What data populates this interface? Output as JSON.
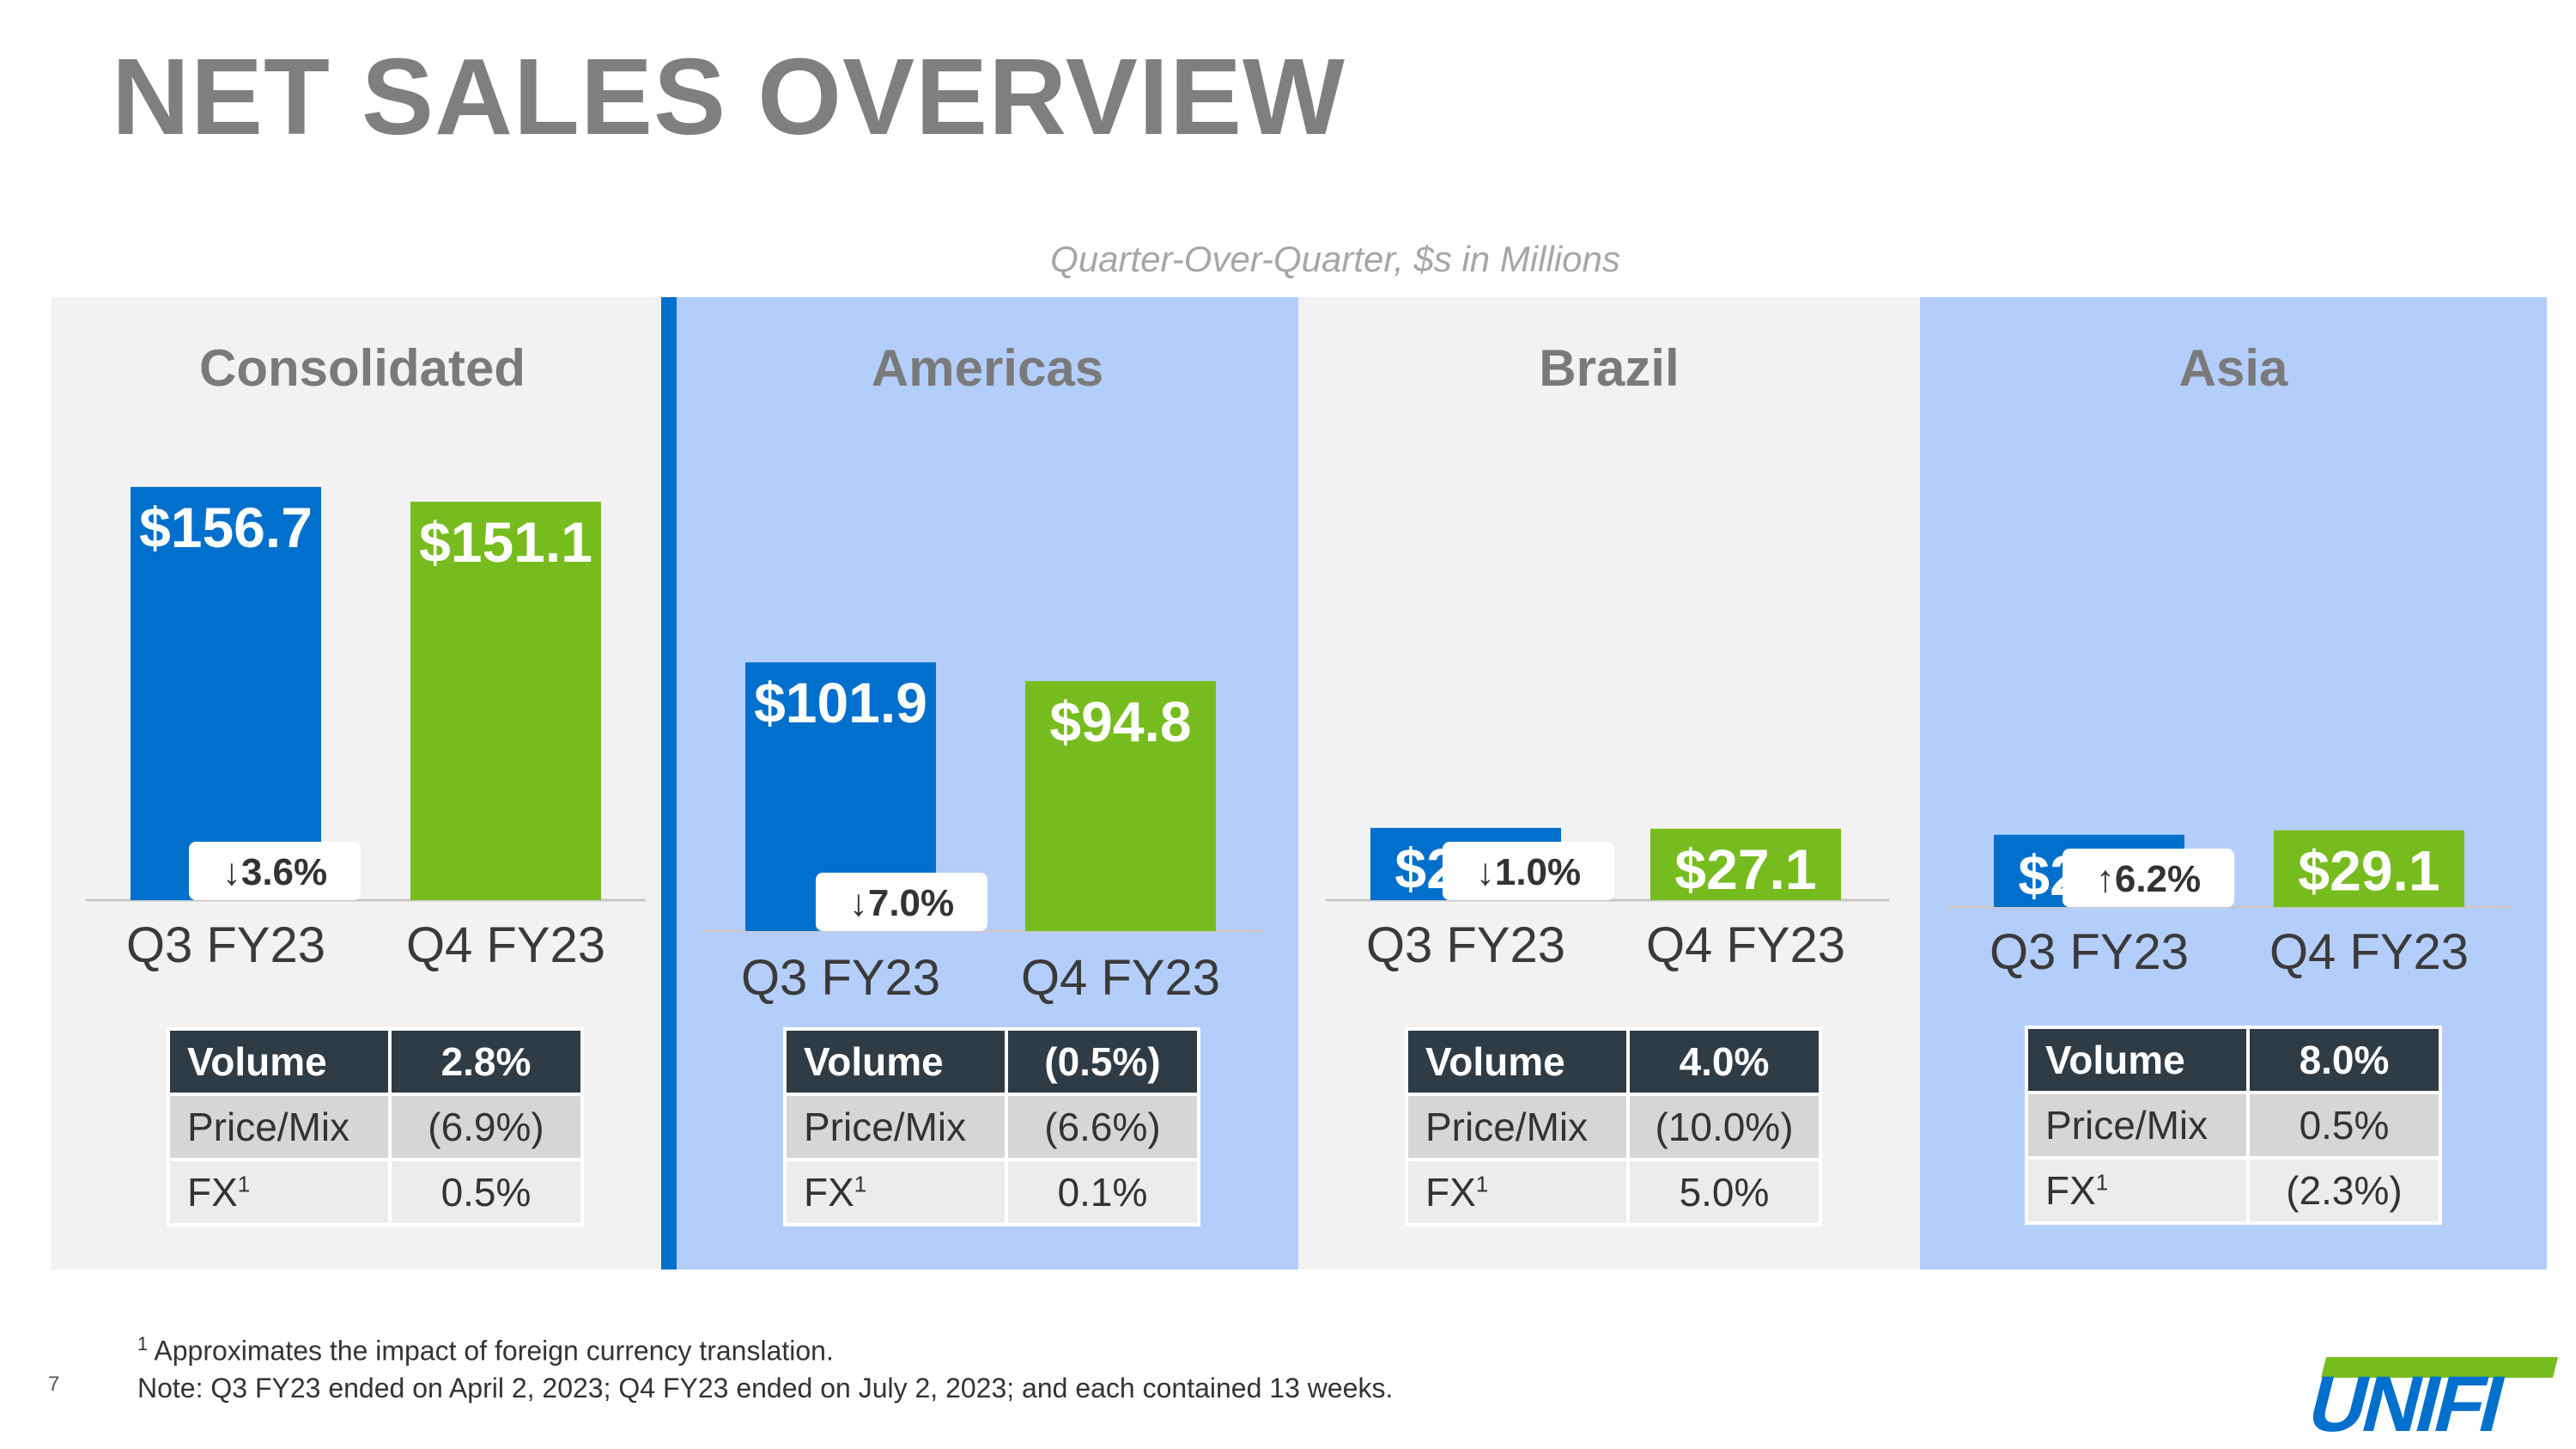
{
  "title": "NET SALES OVERVIEW",
  "subtitle": "Quarter-Over-Quarter, $s in Millions",
  "chart_data": [
    {
      "type": "bar",
      "title": "Consolidated",
      "categories": [
        "Q3 FY23",
        "Q4 FY23"
      ],
      "values": [
        156.7,
        151.1
      ],
      "value_labels": [
        "$156.7",
        "$151.1"
      ],
      "colors": [
        "#0070cc",
        "#77bc1f"
      ],
      "change_label": "↓3.6%",
      "drivers": {
        "header": {
          "label": "Volume",
          "value": "2.8%"
        },
        "price_mix": {
          "label": "Price/Mix",
          "value": "(6.9%)"
        },
        "fx": {
          "label": "FX",
          "sup": "1",
          "value": "0.5%"
        }
      }
    },
    {
      "type": "bar",
      "title": "Americas",
      "categories": [
        "Q3 FY23",
        "Q4 FY23"
      ],
      "values": [
        101.9,
        94.8
      ],
      "value_labels": [
        "$101.9",
        "$94.8"
      ],
      "colors": [
        "#0070cc",
        "#77bc1f"
      ],
      "change_label": "↓7.0%",
      "drivers": {
        "header": {
          "label": "Volume",
          "value": "(0.5%)"
        },
        "price_mix": {
          "label": "Price/Mix",
          "value": "(6.6%)"
        },
        "fx": {
          "label": "FX",
          "sup": "1",
          "value": "0.1%"
        }
      }
    },
    {
      "type": "bar",
      "title": "Brazil",
      "categories": [
        "Q3 FY23",
        "Q4 FY23"
      ],
      "values": [
        27.4,
        27.1
      ],
      "value_labels": [
        "$27.4",
        "$27.1"
      ],
      "colors": [
        "#0070cc",
        "#77bc1f"
      ],
      "change_label": "↓1.0%",
      "drivers": {
        "header": {
          "label": "Volume",
          "value": "4.0%"
        },
        "price_mix": {
          "label": "Price/Mix",
          "value": "(10.0%)"
        },
        "fx": {
          "label": "FX",
          "sup": "1",
          "value": "5.0%"
        }
      }
    },
    {
      "type": "bar",
      "title": "Asia",
      "categories": [
        "Q3 FY23",
        "Q4 FY23"
      ],
      "values": [
        27.4,
        29.1
      ],
      "value_labels": [
        "$27.4",
        "$29.1"
      ],
      "colors": [
        "#0070cc",
        "#77bc1f"
      ],
      "change_label": "↑6.2%",
      "drivers": {
        "header": {
          "label": "Volume",
          "value": "8.0%"
        },
        "price_mix": {
          "label": "Price/Mix",
          "value": "0.5%"
        },
        "fx": {
          "label": "FX",
          "sup": "1",
          "value": "(2.3%)"
        }
      }
    }
  ],
  "footnotes": {
    "note1_sup": "1",
    "note1": "Approximates the impact of foreign currency translation.",
    "note2": "Note: Q3 FY23 ended on April 2, 2023; Q4 FY23 ended on July 2, 2023; and each contained 13 weeks."
  },
  "page_number": "7",
  "logo_text": "UNIFI",
  "colors": {
    "q3_bar": "#0070cc",
    "q4_bar": "#77bc1f",
    "panel_gray": "#f2f2f2",
    "panel_blue": "#b4cefc",
    "title_gray": "#7f7f7f"
  }
}
